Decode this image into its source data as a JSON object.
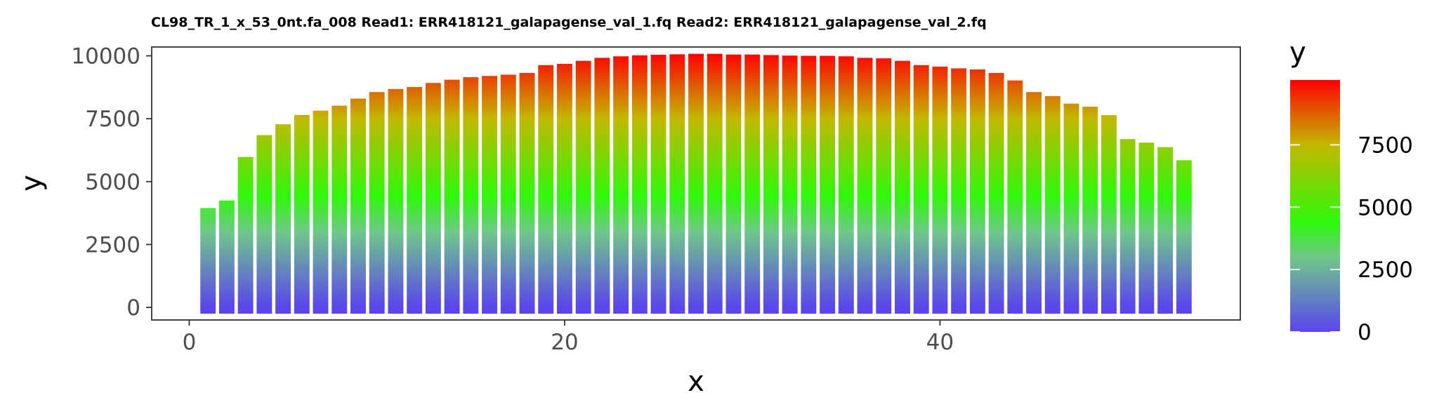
{
  "chart_data": {
    "type": "bar",
    "title": "CL98_TR_1_x_53_0nt.fa_008 Read1: ERR418121_galapagense_val_1.fq Read2: ERR418121_galapagense_val_2.fq",
    "xlabel": "x",
    "ylabel": "y",
    "xlim": [
      -2,
      56
    ],
    "ylim": [
      -500,
      10350
    ],
    "x_ticks": [
      0,
      20,
      40
    ],
    "y_ticks": [
      0,
      2500,
      5000,
      7500,
      10000
    ],
    "x": [
      1,
      2,
      3,
      4,
      5,
      6,
      7,
      8,
      9,
      10,
      11,
      12,
      13,
      14,
      15,
      16,
      17,
      18,
      19,
      20,
      21,
      22,
      23,
      24,
      25,
      26,
      27,
      28,
      29,
      30,
      31,
      32,
      33,
      34,
      35,
      36,
      37,
      38,
      39,
      40,
      41,
      42,
      43,
      44,
      45,
      46,
      47,
      48,
      49,
      50,
      51,
      52,
      53
    ],
    "values": [
      3950,
      4250,
      5980,
      6850,
      7280,
      7650,
      7820,
      8020,
      8300,
      8560,
      8680,
      8760,
      8920,
      9050,
      9150,
      9200,
      9250,
      9320,
      9630,
      9680,
      9800,
      9920,
      9980,
      10020,
      10040,
      10060,
      10080,
      10080,
      10050,
      10050,
      10030,
      10010,
      10000,
      10000,
      9980,
      9920,
      9900,
      9800,
      9630,
      9570,
      9500,
      9460,
      9320,
      9020,
      8560,
      8400,
      8100,
      7980,
      7640,
      6690,
      6550,
      6370,
      5850
    ],
    "bar_min": -250,
    "grid": false,
    "colors": {
      "low": "#5a45ee",
      "mid1": "#6fc88a",
      "mid2": "#2ef80a",
      "mid3": "#c2b800",
      "high": "#ff0000"
    },
    "legend": {
      "title": "y",
      "position": "right",
      "ticks": [
        0,
        2500,
        5000,
        7500
      ]
    }
  }
}
